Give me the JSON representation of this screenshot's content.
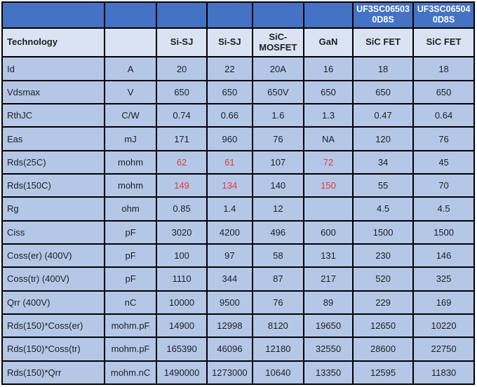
{
  "chart_data": {
    "type": "table",
    "top_header": [
      "",
      "",
      "",
      "",
      "",
      "",
      "UF3SC06503 0D8S",
      "UF3SC06504 0D8S"
    ],
    "tech_header": [
      "Technology",
      "",
      "Si-SJ",
      "Si-SJ",
      "SiC-MOSFET",
      "GaN",
      "SiC FET",
      "SiC FET"
    ],
    "rows": [
      {
        "param": "Id",
        "unit": "A",
        "values": [
          "20",
          "22",
          "20A",
          "16",
          "18",
          "18"
        ],
        "red": []
      },
      {
        "param": "Vdsmax",
        "unit": "V",
        "values": [
          "650",
          "650",
          "650V",
          "650",
          "650",
          "650"
        ],
        "red": []
      },
      {
        "param": "RthJC",
        "unit": "C/W",
        "values": [
          "0.74",
          "0.66",
          "1.6",
          "1.3",
          "0.47",
          "0.64"
        ],
        "red": []
      },
      {
        "param": "Eas",
        "unit": "mJ",
        "values": [
          "171",
          "960",
          "76",
          "NA",
          "120",
          "76"
        ],
        "red": []
      },
      {
        "param": "Rds(25C)",
        "unit": "mohm",
        "values": [
          "62",
          "61",
          "107",
          "72",
          "34",
          "45"
        ],
        "red": [
          0,
          1,
          3
        ]
      },
      {
        "param": "Rds(150C)",
        "unit": "mohm",
        "values": [
          "149",
          "134",
          "140",
          "150",
          "55",
          "70"
        ],
        "red": [
          0,
          1,
          3
        ]
      },
      {
        "param": "Rg",
        "unit": "ohm",
        "values": [
          "0.85",
          "1.4",
          "12",
          "",
          "4.5",
          "4.5"
        ],
        "red": []
      },
      {
        "param": "Ciss",
        "unit": "pF",
        "values": [
          "3020",
          "4200",
          "496",
          "600",
          "1500",
          "1500"
        ],
        "red": []
      },
      {
        "param": "Coss(er) (400V)",
        "unit": "pF",
        "values": [
          "100",
          "97",
          "58",
          "131",
          "230",
          "146"
        ],
        "red": []
      },
      {
        "param": "Coss(tr) (400V)",
        "unit": "pF",
        "values": [
          "1110",
          "344",
          "87",
          "217",
          "520",
          "325"
        ],
        "red": []
      },
      {
        "param": "Qrr (400V)",
        "unit": "nC",
        "values": [
          "10000",
          "9500",
          "76",
          "89",
          "229",
          "169"
        ],
        "red": []
      },
      {
        "param": "Rds(150)*Coss(er)",
        "unit": "mohm.pF",
        "values": [
          "14900",
          "12998",
          "8120",
          "19650",
          "12650",
          "10220"
        ],
        "red": []
      },
      {
        "param": "Rds(150)*Coss(tr)",
        "unit": "mohm.pF",
        "values": [
          "165390",
          "46096",
          "12180",
          "32550",
          "28600",
          "22750"
        ],
        "red": []
      },
      {
        "param": "Rds(150)*Qrr",
        "unit": "mohm.nC",
        "values": [
          "1490000",
          "1273000",
          "10640",
          "13350",
          "12595",
          "11830"
        ],
        "red": []
      }
    ],
    "layout": {
      "column_widths_pct": [
        21.7,
        11.0,
        10.7,
        9.6,
        10.9,
        10.4,
        12.8,
        12.9
      ],
      "grid": "on",
      "legend": "none"
    },
    "colors": {
      "header_bg": "#4472C4",
      "header_text": "#FFFFFF",
      "subheader_bg": "#DAE3F3",
      "cell_bg": "#B4C7E7",
      "border": "#000000",
      "text": "#1F1F1F",
      "highlight_red": "#EC3B2F"
    }
  }
}
